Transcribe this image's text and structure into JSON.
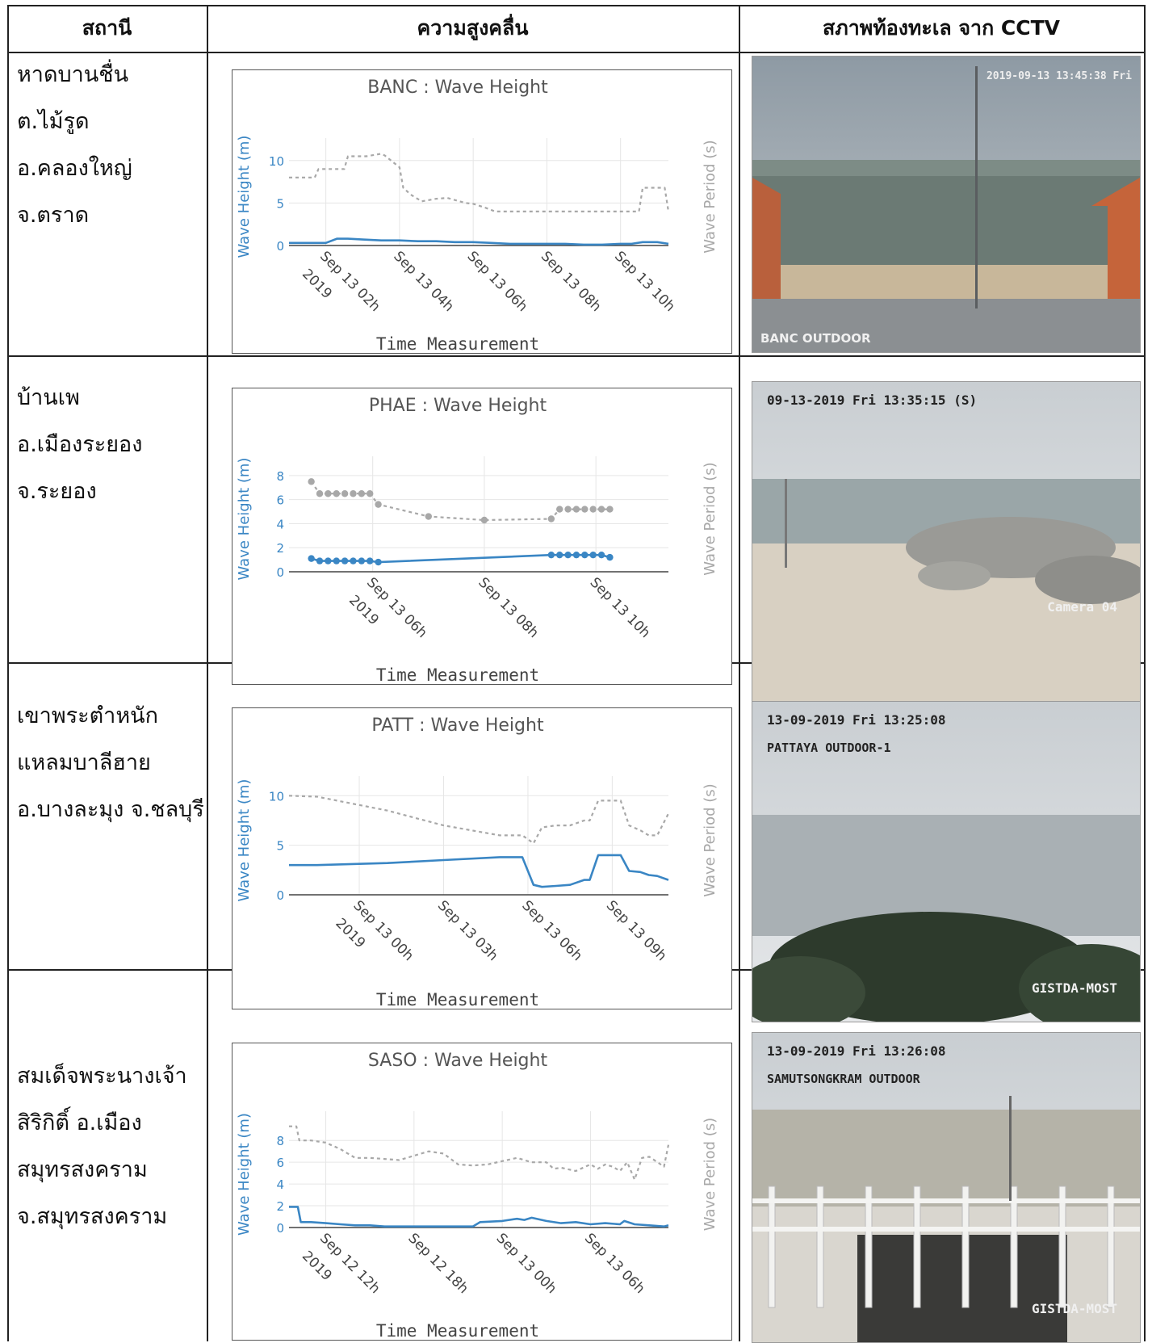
{
  "headers": {
    "station": "สถานี",
    "wave": "ความสูงคลื่น",
    "cctv": "สภาพท้องทะเล จาก CCTV"
  },
  "axis": {
    "y_left": "Wave Height (m)",
    "y_right": "Wave Period (s)",
    "x": "Time Measurement"
  },
  "colors": {
    "height": "#3a86c4",
    "period": "#a8a8a8",
    "grid": "#e6e6e6"
  },
  "rows": [
    {
      "station_lines": [
        "หาดบานชื่น",
        "ต.ไม้รูด",
        "อ.คลองใหญ่",
        "จ.ตราด"
      ],
      "cam": {
        "overlay_top": "2019-09-13 13:45:38 Fri",
        "overlay_bottom": "BANC OUTDOOR",
        "scene": "beach-pole"
      },
      "chart_data": {
        "type": "line",
        "title": "BANC : Wave Height",
        "xlim": [
          1,
          11.3
        ],
        "ylim": [
          0,
          11.5
        ],
        "y_ticks": [
          0,
          5,
          10
        ],
        "x_ticks": [
          {
            "x": 2,
            "label": [
              "Sep 13 02h",
              "2019"
            ]
          },
          {
            "x": 4,
            "label": [
              "Sep 13 04h"
            ]
          },
          {
            "x": 6,
            "label": [
              "Sep 13 06h"
            ]
          },
          {
            "x": 8,
            "label": [
              "Sep 13 08h"
            ]
          },
          {
            "x": 10,
            "label": [
              "Sep 13 10h"
            ]
          }
        ],
        "markers": false,
        "series": [
          {
            "name": "Wave Height",
            "axis": "left",
            "x": [
              1,
              1.5,
              2,
              2.3,
              2.6,
              3,
              3.5,
              4,
              4.5,
              5,
              5.5,
              6,
              6.5,
              7,
              7.5,
              8,
              8.5,
              9,
              9.5,
              10,
              10.3,
              10.6,
              11,
              11.3
            ],
            "y": [
              0.3,
              0.3,
              0.3,
              0.8,
              0.8,
              0.7,
              0.6,
              0.6,
              0.5,
              0.5,
              0.4,
              0.4,
              0.3,
              0.2,
              0.2,
              0.2,
              0.2,
              0.1,
              0.1,
              0.2,
              0.2,
              0.4,
              0.4,
              0.2
            ]
          },
          {
            "name": "Wave Period",
            "axis": "right",
            "dashed": true,
            "x": [
              1,
              1.7,
              1.8,
              2.5,
              2.6,
              3,
              3.1,
              3.5,
              3.6,
              4,
              4.1,
              4.3,
              4.6,
              5,
              5.3,
              5.8,
              6,
              6.3,
              6.6,
              7,
              8,
              9,
              10,
              10.5,
              10.6,
              11.2,
              11.3
            ],
            "y": [
              8,
              8,
              9,
              9,
              10.5,
              10.5,
              10.5,
              10.8,
              10.6,
              9.2,
              6.8,
              6,
              5.2,
              5.5,
              5.6,
              5,
              4.9,
              4.5,
              4,
              4,
              4,
              4,
              4,
              4,
              6.8,
              6.8,
              4
            ]
          }
        ]
      }
    },
    {
      "station_lines": [
        "บ้านเพ",
        "อ.เมืองระยอง",
        "จ.ระยอง"
      ],
      "cam": {
        "overlay_top": "09-13-2019 Fri 13:35:15 (S)",
        "overlay_bottom": "Camera 04",
        "scene": "rocks"
      },
      "chart_data": {
        "type": "line",
        "title": "PHAE : Wave Height",
        "xlim": [
          4.5,
          11.3
        ],
        "ylim": [
          0,
          8.8
        ],
        "y_ticks": [
          0,
          2,
          4,
          6,
          8
        ],
        "x_ticks": [
          {
            "x": 6,
            "label": [
              "Sep 13 06h",
              "2019"
            ]
          },
          {
            "x": 8,
            "label": [
              "Sep 13 08h"
            ]
          },
          {
            "x": 10,
            "label": [
              "Sep 13 10h"
            ]
          }
        ],
        "markers": true,
        "series": [
          {
            "name": "Wave Height",
            "axis": "left",
            "x": [
              4.9,
              5.05,
              5.2,
              5.35,
              5.5,
              5.65,
              5.8,
              5.95,
              6.1,
              9.2,
              9.35,
              9.5,
              9.65,
              9.8,
              9.95,
              10.1,
              10.25
            ],
            "y": [
              1.1,
              0.9,
              0.9,
              0.9,
              0.9,
              0.9,
              0.9,
              0.9,
              0.8,
              1.4,
              1.4,
              1.4,
              1.4,
              1.4,
              1.4,
              1.4,
              1.2
            ]
          },
          {
            "name": "Wave Period",
            "axis": "right",
            "dashed": true,
            "x": [
              4.9,
              5.05,
              5.2,
              5.35,
              5.5,
              5.65,
              5.8,
              5.95,
              6.1,
              7,
              8,
              9.2,
              9.35,
              9.5,
              9.65,
              9.8,
              9.95,
              10.1,
              10.25
            ],
            "y": [
              7.5,
              6.5,
              6.5,
              6.5,
              6.5,
              6.5,
              6.5,
              6.5,
              5.6,
              4.6,
              4.3,
              4.4,
              5.2,
              5.2,
              5.2,
              5.2,
              5.2,
              5.2,
              5.2
            ]
          }
        ]
      }
    },
    {
      "station_lines": [
        "เขาพระตำหนัก",
        "แหลมบาลีฮาย",
        "อ.บางละมุง จ.ชลบุรี"
      ],
      "cam": {
        "overlay_top": "13-09-2019 Fri 13:25:08",
        "overlay_top2": "PATTAYA OUTDOOR-1",
        "overlay_bottom": "GISTDA-MOST",
        "scene": "trees"
      },
      "chart_data": {
        "type": "line",
        "title": "PATT : Wave Height",
        "xlim": [
          -2.5,
          11
        ],
        "ylim": [
          0,
          11
        ],
        "y_ticks": [
          0,
          5,
          10
        ],
        "x_ticks": [
          {
            "x": 0,
            "label": [
              "Sep 13 00h",
              "2019"
            ]
          },
          {
            "x": 3,
            "label": [
              "Sep 13 03h"
            ]
          },
          {
            "x": 6,
            "label": [
              "Sep 13 06h"
            ]
          },
          {
            "x": 9,
            "label": [
              "Sep 13 09h"
            ]
          }
        ],
        "markers": false,
        "series": [
          {
            "name": "Wave Height",
            "axis": "left",
            "x": [
              -2.5,
              -1.5,
              1,
              3,
              5,
              5.8,
              6.2,
              6.5,
              7,
              7.5,
              8,
              8.2,
              8.5,
              8.7,
              9.3,
              9.6,
              10,
              10.3,
              10.6,
              11
            ],
            "y": [
              3,
              3,
              3.2,
              3.5,
              3.8,
              3.8,
              1,
              0.8,
              0.9,
              1,
              1.5,
              1.5,
              4,
              4,
              4,
              2.4,
              2.3,
              2,
              1.9,
              1.5
            ]
          },
          {
            "name": "Wave Period",
            "axis": "right",
            "dashed": true,
            "x": [
              -2.5,
              -1.5,
              1,
              3,
              5,
              5.8,
              6.2,
              6.5,
              7,
              7.5,
              8,
              8.2,
              8.5,
              8.7,
              9.3,
              9.6,
              10,
              10.3,
              10.6,
              11
            ],
            "y": [
              10,
              9.9,
              8.5,
              7,
              6,
              6,
              5.2,
              6.8,
              7,
              7,
              7.5,
              7.5,
              9.5,
              9.5,
              9.5,
              7,
              6.5,
              6,
              6,
              8.2
            ]
          }
        ]
      }
    },
    {
      "station_lines": [
        "สมเด็จพระนางเจ้า",
        "สิริกิติ์ อ.เมือง",
        "สมุทรสงคราม",
        "จ.สมุทรสงคราม"
      ],
      "cam": {
        "overlay_top": "13-09-2019 Fri 13:26:08",
        "overlay_top2": "SAMUTSONGKRAM OUTDOOR",
        "overlay_bottom": "GISTDA-MOST",
        "scene": "railing"
      },
      "chart_data": {
        "type": "line",
        "title": "SASO : Wave Height",
        "xlim": [
          9.5,
          35.3
        ],
        "ylim": [
          0,
          9.8
        ],
        "y_ticks": [
          0,
          2,
          4,
          6,
          8
        ],
        "x_ticks": [
          {
            "x": 12,
            "label": [
              "Sep 12 12h",
              "2019"
            ]
          },
          {
            "x": 18,
            "label": [
              "Sep 12 18h"
            ]
          },
          {
            "x": 24,
            "label": [
              "Sep 13 00h"
            ]
          },
          {
            "x": 30,
            "label": [
              "Sep 13 06h"
            ]
          }
        ],
        "markers": false,
        "series": [
          {
            "name": "Wave Height",
            "axis": "left",
            "x": [
              9.5,
              10.1,
              10.3,
              11,
              12,
              13,
              14,
              15,
              16,
              18,
              20,
              22,
              22.5,
              24,
              25,
              25.5,
              26,
              27,
              28,
              29,
              30,
              31,
              32,
              32.3,
              33,
              34,
              35,
              35.3
            ],
            "y": [
              1.9,
              1.9,
              0.5,
              0.5,
              0.4,
              0.3,
              0.2,
              0.2,
              0.1,
              0.1,
              0.1,
              0.1,
              0.5,
              0.6,
              0.8,
              0.7,
              0.9,
              0.6,
              0.4,
              0.5,
              0.3,
              0.4,
              0.3,
              0.6,
              0.3,
              0.2,
              0.1,
              0.2
            ]
          },
          {
            "name": "Wave Period",
            "axis": "right",
            "dashed": true,
            "x": [
              9.5,
              10,
              10.2,
              11,
              12,
              13,
              13.5,
              14,
              15,
              16,
              17,
              18,
              19,
              20,
              21,
              22,
              23,
              24,
              25,
              26,
              27,
              27.5,
              28,
              29,
              30,
              30.5,
              31,
              31.5,
              32,
              32.5,
              33,
              33.5,
              34,
              35,
              35.3
            ],
            "y": [
              9.3,
              9.3,
              8,
              8,
              7.8,
              7.2,
              6.8,
              6.4,
              6.4,
              6.3,
              6.2,
              6.6,
              7,
              6.8,
              5.8,
              5.7,
              5.8,
              6.1,
              6.4,
              6,
              6,
              5.4,
              5.5,
              5.2,
              5.8,
              5.4,
              5.8,
              5.6,
              5.2,
              6,
              4.4,
              6.4,
              6.5,
              5.6,
              7.6
            ]
          }
        ]
      }
    }
  ]
}
